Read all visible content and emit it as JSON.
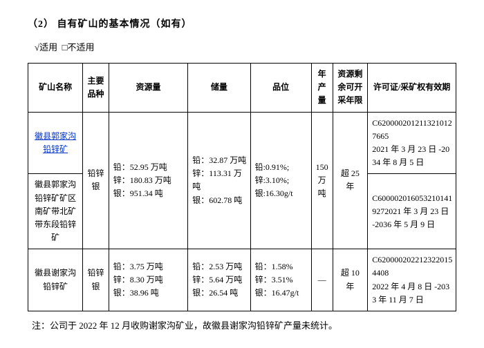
{
  "section": {
    "number": "（2）",
    "title": "自有矿山的基本情况（如有）"
  },
  "applicable": {
    "check": "√适用",
    "uncheck": "□不适用"
  },
  "table": {
    "headers": {
      "name": "矿山名称",
      "species": "主要品种",
      "resource": "资源量",
      "reserve": "储量",
      "grade": "品位",
      "annual": "年产量",
      "remain": "资源剩余可开采年限",
      "license": "许可证/采矿权有效期"
    },
    "group1": {
      "species": "铅锌银",
      "resource": "铅：52.95 万吨\n锌：180.83 万吨\n银：951.34 吨",
      "reserve": "铅：32.87 万吨\n锌：113.31 万吨\n银：602.78 吨",
      "grade": "铅:0.91%;\n锌:3.10%;\n银:16.30g/t",
      "annual": "150万吨",
      "remain": "超 25 年",
      "row1": {
        "name": "徽县郭家沟铅锌矿",
        "license": "C6200002012113210127665\n2021 年 3 月 23 日 -2034 年 8 月 5 日"
      },
      "row2": {
        "name": "徽县郭家沟铅锌矿矿区南矿带北矿带东段铅锌矿",
        "license": "C6000020160532101419272021 年 3 月 23 日 -2036 年 5 月 9 日"
      }
    },
    "row3": {
      "name": "徽县谢家沟铅锌矿",
      "species": "铅锌银",
      "resource": "铅：3.75 万吨\n锌：8.30 万吨\n银：38.96 吨",
      "reserve": "铅：2.53 万吨\n锌：5.64 万吨\n银：26.54 吨",
      "grade": "铅：1.58%\n锌：3.51%\n银：16.47g/t",
      "annual": "—",
      "remain": "超 10 年",
      "license": "C6200002022123220154408\n2022 年 4 月 8 日 -2033 年 11 月 7 日"
    }
  },
  "note": "注：公司于 2022 年 12 月收购谢家沟矿业，故徽县谢家沟铅锌矿产量未统计。"
}
